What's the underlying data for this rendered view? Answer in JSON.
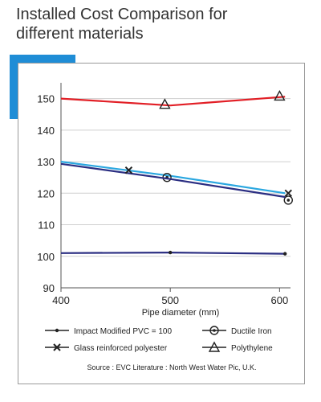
{
  "title_lines": [
    "Installed Cost Comparison for",
    "different materials"
  ],
  "chart_data": {
    "type": "line",
    "title": "Installed Cost Comparison for different materials",
    "xlabel": "Pipe diameter (mm)",
    "ylabel": "",
    "xlim": [
      400,
      610
    ],
    "ylim": [
      90,
      155
    ],
    "xticks": [
      400,
      500,
      600
    ],
    "yticks": [
      90,
      100,
      110,
      120,
      130,
      140,
      150
    ],
    "grid": "horizontal",
    "source": "Source : EVC Literature : North West Water Pic, U.K.",
    "series": [
      {
        "name": "Impact Modified PVC = 100",
        "color": "#2b2e82",
        "marker": "dot",
        "points": [
          [
            400,
            101
          ],
          [
            500,
            101.2
          ],
          [
            605,
            100.8
          ]
        ],
        "markers": [
          [
            500,
            101.2
          ],
          [
            605,
            100.8
          ]
        ]
      },
      {
        "name": "Ductile Iron",
        "color": "#2aa7e0",
        "marker": "circle-dot",
        "points": [
          [
            400,
            130
          ],
          [
            500,
            125.5
          ],
          [
            605,
            120
          ]
        ],
        "markers": [
          [
            497,
            125
          ],
          [
            608,
            117.8
          ]
        ]
      },
      {
        "name": "Glass reinforced polyester",
        "color": "#2b2e82",
        "marker": "x",
        "points": [
          [
            400,
            129.3
          ],
          [
            500,
            124.5
          ],
          [
            605,
            118.8
          ]
        ],
        "markers": [
          [
            462,
            127.3
          ],
          [
            608,
            120
          ]
        ]
      },
      {
        "name": "Polythylene",
        "color": "#e21f26",
        "marker": "triangle",
        "points": [
          [
            400,
            150
          ],
          [
            500,
            147.8
          ],
          [
            605,
            150.6
          ]
        ],
        "markers": [
          [
            495,
            148.2
          ],
          [
            600,
            150.8
          ]
        ]
      }
    ],
    "legend": [
      {
        "label": "Impact Modified PVC = 100",
        "marker": "dot"
      },
      {
        "label": "Ductile Iron",
        "marker": "circle-dot"
      },
      {
        "label": "Glass reinforced polyester",
        "marker": "x"
      },
      {
        "label": "Polythylene",
        "marker": "triangle"
      }
    ],
    "legend_position": "bottom"
  }
}
